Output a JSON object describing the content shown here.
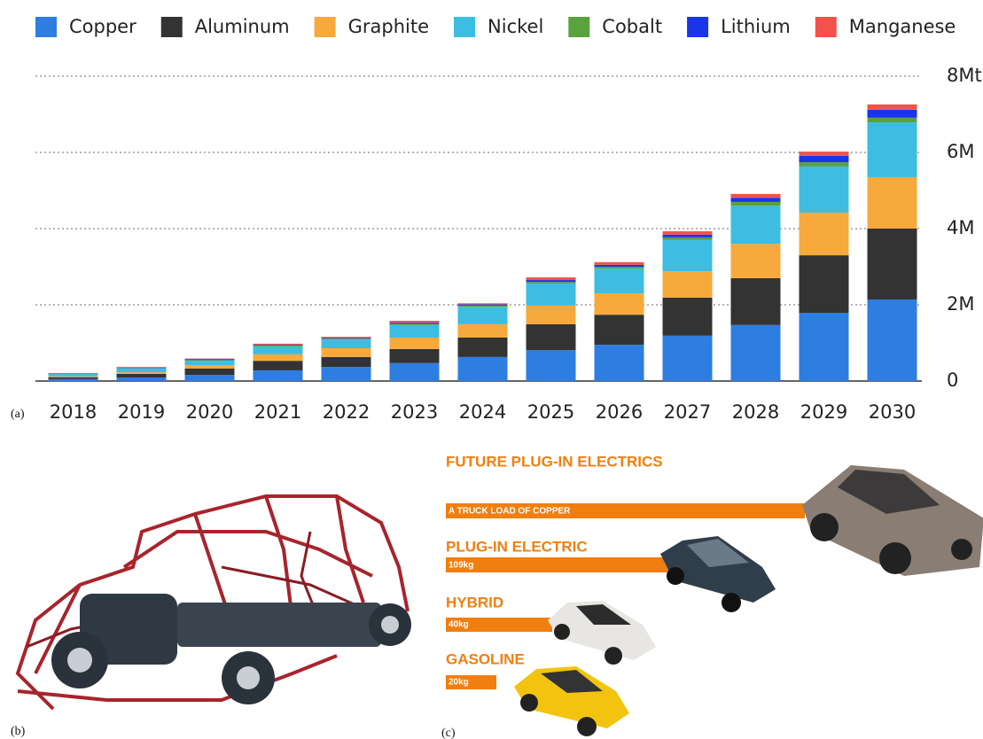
{
  "chart_data": {
    "type": "stacked-bar",
    "categories": [
      "2018",
      "2019",
      "2020",
      "2021",
      "2022",
      "2023",
      "2024",
      "2025",
      "2026",
      "2027",
      "2028",
      "2029",
      "2030"
    ],
    "series": [
      {
        "name": "Copper",
        "color": "#2e7de0",
        "values": [
          0.05,
          0.09,
          0.16,
          0.28,
          0.37,
          0.47,
          0.63,
          0.81,
          0.95,
          1.19,
          1.47,
          1.79,
          2.14
        ]
      },
      {
        "name": "Aluminum",
        "color": "#333333",
        "values": [
          0.05,
          0.1,
          0.17,
          0.25,
          0.26,
          0.37,
          0.51,
          0.68,
          0.79,
          1.0,
          1.23,
          1.51,
          1.86
        ]
      },
      {
        "name": "Graphite",
        "color": "#f7a93b",
        "values": [
          0.02,
          0.04,
          0.09,
          0.17,
          0.23,
          0.3,
          0.35,
          0.49,
          0.56,
          0.69,
          0.9,
          1.12,
          1.35
        ]
      },
      {
        "name": "Nickel",
        "color": "#3dbde2",
        "values": [
          0.06,
          0.1,
          0.11,
          0.21,
          0.23,
          0.33,
          0.46,
          0.58,
          0.65,
          0.82,
          1.0,
          1.21,
          1.44
        ]
      },
      {
        "name": "Cobalt",
        "color": "#5aa23e",
        "values": [
          0.01,
          0.01,
          0.02,
          0.02,
          0.02,
          0.03,
          0.03,
          0.04,
          0.05,
          0.07,
          0.1,
          0.11,
          0.12
        ]
      },
      {
        "name": "Lithium",
        "color": "#1a35e8",
        "values": [
          0.01,
          0.01,
          0.02,
          0.02,
          0.02,
          0.03,
          0.03,
          0.05,
          0.05,
          0.07,
          0.11,
          0.17,
          0.21
        ]
      },
      {
        "name": "Manganese",
        "color": "#f2524c",
        "values": [
          0.01,
          0.02,
          0.02,
          0.03,
          0.03,
          0.05,
          0.03,
          0.07,
          0.07,
          0.09,
          0.1,
          0.11,
          0.14
        ]
      }
    ],
    "ylim": [
      0,
      8
    ],
    "yticks": [
      0,
      {
        "value": 2,
        "label": "2M"
      },
      {
        "value": 4,
        "label": "4M"
      },
      {
        "value": 6,
        "label": "6M"
      },
      {
        "value": 8,
        "label": "8Mt"
      }
    ],
    "grid": true,
    "legend": "top"
  },
  "panel_labels": {
    "a": "(a)",
    "b": "(b)",
    "c": "(c)"
  },
  "infographic": {
    "title": "FUTURE PLUG-IN ELECTRICS",
    "rows": [
      {
        "label": "A TRUCK LOAD OF COPPER"
      },
      {
        "label": "PLUG-IN ELECTRIC",
        "value_label": "109kg"
      },
      {
        "label": "HYBRID",
        "value_label": "40kg"
      },
      {
        "label": "GASOLINE",
        "value_label": "20kg"
      }
    ]
  }
}
